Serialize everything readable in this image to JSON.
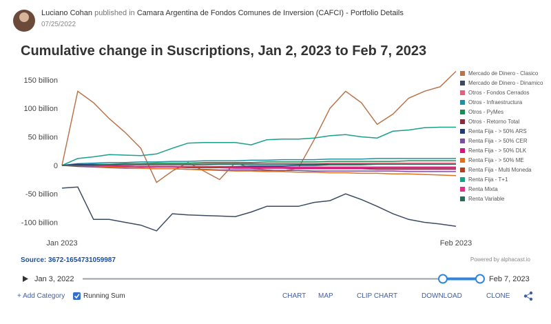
{
  "header": {
    "author": "Luciano Cohan",
    "published_in": "published in",
    "publisher": "Camara Argentina de Fondos Comunes de Inversion (CAFCI) - Portfolio Details",
    "date": "07/25/2022"
  },
  "chart_data": {
    "type": "line",
    "title": "Cumulative change in Suscriptions, Jan 2, 2023 to Feb 7, 2023",
    "categories": [
      "Jan 2023",
      null,
      null,
      null,
      null,
      null,
      null,
      null,
      null,
      null,
      null,
      null,
      null,
      null,
      null,
      null,
      null,
      null,
      null,
      null,
      null,
      null,
      null,
      null,
      null,
      "Feb 2023"
    ],
    "ylim": [
      -120,
      170
    ],
    "yticks": [
      {
        "value": -100,
        "label": "-100 billion"
      },
      {
        "value": -50,
        "label": "-50 billion"
      },
      0,
      {
        "value": 50,
        "label": "50 billion"
      },
      {
        "value": 100,
        "label": "100 billion"
      },
      {
        "value": 150,
        "label": "150 billion"
      }
    ],
    "grid": false,
    "series": [
      {
        "name": "Mercado de Dinero - Clasico",
        "color": "#b8744c",
        "values": [
          0,
          130,
          110,
          82,
          58,
          30,
          -30,
          -10,
          5,
          -10,
          -25,
          5,
          -5,
          -8,
          -10,
          -5,
          45,
          100,
          130,
          110,
          72,
          90,
          118,
          130,
          138,
          165
        ]
      },
      {
        "name": "Mercado de Dinero - Dinamico",
        "color": "#3b4a63",
        "values": [
          -40,
          -38,
          -95,
          -95,
          -100,
          -105,
          -115,
          -85,
          -87,
          -88,
          -89,
          -90,
          -82,
          -72,
          -72,
          -72,
          -65,
          -62,
          -50,
          -60,
          -72,
          -85,
          -95,
          -100,
          -103,
          -107
        ]
      },
      {
        "name": "Otros - Fondos Cerrados",
        "color": "#e0607e",
        "values": [
          0,
          1,
          1,
          1,
          2,
          2,
          2,
          2,
          2,
          3,
          3,
          3,
          3,
          3,
          3,
          3,
          3,
          4,
          4,
          4,
          4,
          4,
          4,
          4,
          4,
          4
        ]
      },
      {
        "name": "Otros - Infraestructura",
        "color": "#1f8fa3",
        "values": [
          0,
          3,
          4,
          5,
          5,
          6,
          6,
          7,
          7,
          8,
          8,
          8,
          9,
          9,
          10,
          10,
          10,
          11,
          11,
          11,
          12,
          12,
          12,
          12,
          12,
          12
        ]
      },
      {
        "name": "Otros - PyMes",
        "color": "#1e8c4e",
        "values": [
          0,
          1,
          2,
          2,
          3,
          3,
          4,
          4,
          4,
          5,
          5,
          5,
          5,
          6,
          6,
          6,
          6,
          7,
          7,
          7,
          7,
          7,
          8,
          8,
          8,
          8
        ]
      },
      {
        "name": "Otros - Retorno Total",
        "color": "#8b2a3a",
        "values": [
          0,
          -1,
          -1,
          -2,
          -2,
          -2,
          -3,
          -3,
          -3,
          -3,
          -4,
          -4,
          -4,
          -4,
          -4,
          -4,
          -5,
          -5,
          -5,
          -5,
          -5,
          -5,
          -5,
          -5,
          -5,
          -5
        ]
      },
      {
        "name": "Renta Fija - > 50% ARS",
        "color": "#1f3b73",
        "values": [
          0,
          2,
          1,
          0,
          -1,
          -2,
          -2,
          -3,
          -3,
          -3,
          -2,
          -2,
          -1,
          -1,
          -1,
          0,
          0,
          1,
          1,
          1,
          2,
          2,
          2,
          2,
          2,
          2
        ]
      },
      {
        "name": "Renta Fija - > 50% CER",
        "color": "#7b4fa0",
        "values": [
          0,
          -2,
          -3,
          -4,
          -5,
          -5,
          -6,
          -6,
          -7,
          -7,
          -8,
          -8,
          -8,
          -9,
          -9,
          -9,
          -10,
          -10,
          -10,
          -10,
          -10,
          -10,
          -11,
          -11,
          -11,
          -11
        ]
      },
      {
        "name": "Renta Fija - > 50% DLK",
        "color": "#d0187c",
        "values": [
          0,
          -1,
          -1,
          -2,
          -2,
          -3,
          -3,
          -3,
          -4,
          -4,
          -4,
          -5,
          -5,
          -5,
          -5,
          -6,
          -6,
          -6,
          -6,
          -6,
          -7,
          -7,
          -7,
          -7,
          -7,
          -7
        ]
      },
      {
        "name": "Renta Fija - > 50% ME",
        "color": "#e0701e",
        "values": [
          0,
          -1,
          -2,
          -3,
          -4,
          -5,
          -6,
          -6,
          -7,
          -8,
          -9,
          -10,
          -10,
          -11,
          -11,
          -12,
          -12,
          -13,
          -13,
          -14,
          -14,
          -15,
          -15,
          -16,
          -17,
          -18
        ]
      },
      {
        "name": "Renta Fija - Multi Moneda",
        "color": "#b04020",
        "values": [
          0,
          -1,
          -1,
          -1,
          -2,
          -2,
          -2,
          -2,
          -3,
          -3,
          -3,
          -3,
          -3,
          -3,
          -4,
          -4,
          -4,
          -4,
          -4,
          -4,
          -4,
          -4,
          -4,
          -4,
          -4,
          -4
        ]
      },
      {
        "name": "Renta Fija - T+1",
        "color": "#17a08a",
        "values": [
          0,
          12,
          15,
          19,
          18,
          17,
          20,
          30,
          39,
          40,
          40,
          40,
          36,
          45,
          46,
          46,
          48,
          52,
          54,
          50,
          48,
          60,
          62,
          66,
          67,
          67
        ]
      },
      {
        "name": "Renta Mixta",
        "color": "#e0308a",
        "values": [
          0,
          0,
          -1,
          -1,
          -1,
          -2,
          -2,
          -2,
          -2,
          -2,
          -2,
          -3,
          -3,
          -3,
          -3,
          -3,
          -3,
          -3,
          -3,
          -3,
          -3,
          -3,
          -3,
          -3,
          -3,
          -3
        ]
      },
      {
        "name": "Renta Variable",
        "color": "#2a6a5a",
        "values": [
          0,
          0,
          0,
          1,
          1,
          1,
          1,
          1,
          1,
          1,
          2,
          2,
          2,
          2,
          2,
          2,
          2,
          2,
          2,
          2,
          2,
          2,
          2,
          2,
          2,
          2
        ]
      }
    ]
  },
  "footer": {
    "source": "Source: 3672-1654731059987",
    "powered": "Powered by alphacast.io",
    "range_start": "Jan 3, 2022",
    "range_end": "Feb 7, 2023",
    "add_category": "+ Add Category",
    "running_sum": "Running Sum",
    "buttons": [
      "CHART",
      "MAP",
      "CLIP CHART",
      "DOWNLOAD",
      "CLONE"
    ]
  }
}
